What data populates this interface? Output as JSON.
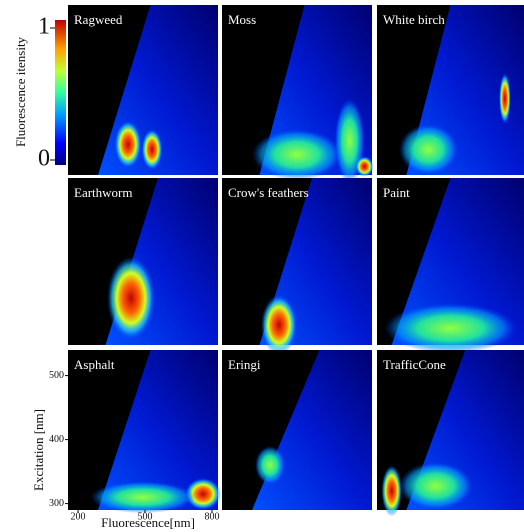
{
  "chart_data": {
    "type": "heatmap",
    "panels": [
      "Ragweed",
      "Moss",
      "White birch",
      "Earthworm",
      "Crow's feathers",
      "Paint",
      "Asphalt",
      "Eringi",
      "TrafficCone"
    ],
    "xlabel": "Fluorescence[nm]",
    "ylabel": "Excitation [nm]",
    "xlim": [
      155,
      827
    ],
    "xticks": [
      200,
      500,
      800
    ],
    "ylim": [
      290,
      540
    ],
    "yticks": [
      300,
      400,
      500
    ],
    "colorbar": {
      "label": "Fluorescence itensity",
      "lim": [
        0,
        1
      ],
      "ticks": [
        0,
        1
      ]
    }
  }
}
